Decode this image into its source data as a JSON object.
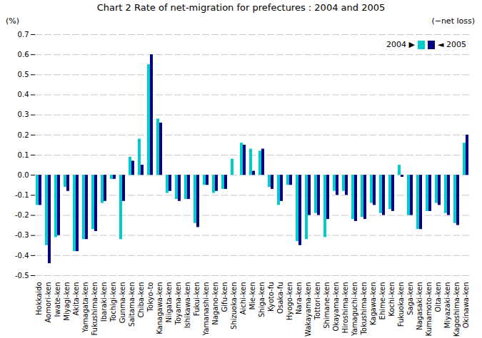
{
  "chart_data": {
    "type": "bar",
    "title": "Chart 2  Rate of net-migration for prefectures : 2004 and 2005",
    "ylabel": "(%)",
    "annotations": [
      "(−net loss)"
    ],
    "categories": [
      "Hokkaido",
      "Aomori-ken",
      "Iwate-ken",
      "Miyagi-ken",
      "Akita-ken",
      "Yamagata-ken",
      "Fukushima-ken",
      "Ibaraki-ken",
      "Tochigi-ken",
      "Gunma-ken",
      "Saitama-ken",
      "Chiba-ken",
      "Tokyo-to",
      "Kanagawa-ken",
      "Niigata-ken",
      "Toyama-ken",
      "Ishikawa-ken",
      "Fukui-ken",
      "Yamanashi-ken",
      "Nagano-ken",
      "Gifu-ken",
      "Shizuoka-ken",
      "Aichi-ken",
      "Mie-ken",
      "Shiga-ken",
      "Kyoto-fu",
      "Osaka-fu",
      "Hyogo-ken",
      "Nara-ken",
      "Wakayama-ken",
      "Tottori-ken",
      "Shimane-ken",
      "Okayama-ken",
      "Hiroshima-ken",
      "Yamaguchi-ken",
      "Tokushima-ken",
      "Kagawa-ken",
      "Ehime-ken",
      "Kochi-ken",
      "Fukuoka-ken",
      "Saga-ken",
      "Nagasaki-ken",
      "Kumamoto-ken",
      "Oita-ken",
      "Miyazaki-ken",
      "Kagoshima-ken",
      "Okinawa-ken"
    ],
    "series": [
      {
        "name": "2004 ▶",
        "color": "#00CCCC",
        "values": [
          -0.15,
          -0.35,
          -0.31,
          -0.06,
          -0.38,
          -0.32,
          -0.27,
          -0.14,
          -0.02,
          -0.32,
          0.09,
          0.18,
          0.55,
          0.28,
          -0.09,
          -0.12,
          -0.12,
          -0.24,
          -0.05,
          -0.09,
          -0.07,
          0.08,
          0.16,
          0.13,
          0.12,
          -0.06,
          -0.15,
          -0.05,
          -0.33,
          -0.32,
          -0.19,
          -0.31,
          -0.08,
          -0.08,
          -0.22,
          -0.21,
          -0.14,
          -0.19,
          -0.17,
          0.05,
          -0.2,
          -0.27,
          -0.18,
          -0.14,
          -0.19,
          -0.24,
          0.16
        ]
      },
      {
        "name": "◄ 2005",
        "color": "#000080",
        "values": [
          -0.15,
          -0.44,
          -0.3,
          -0.08,
          -0.38,
          -0.32,
          -0.28,
          -0.13,
          -0.02,
          -0.13,
          0.07,
          0.05,
          0.6,
          0.26,
          -0.08,
          -0.13,
          -0.12,
          -0.26,
          -0.05,
          -0.08,
          -0.07,
          0.0,
          0.15,
          0.02,
          0.13,
          -0.07,
          -0.13,
          -0.05,
          -0.35,
          -0.2,
          -0.2,
          -0.22,
          -0.1,
          -0.1,
          -0.23,
          -0.22,
          -0.15,
          -0.2,
          -0.18,
          -0.01,
          -0.2,
          -0.27,
          -0.18,
          -0.15,
          -0.2,
          -0.25,
          0.2
        ]
      }
    ],
    "ylim": [
      -0.5,
      0.7
    ],
    "yticks": [
      -0.5,
      -0.4,
      -0.3,
      -0.2,
      -0.1,
      {
        "value": 0,
        "label": "0.0"
      },
      0.1,
      0.2,
      0.3,
      0.4,
      0.5,
      0.6,
      0.7
    ],
    "grid": true,
    "legend": "upper right"
  }
}
